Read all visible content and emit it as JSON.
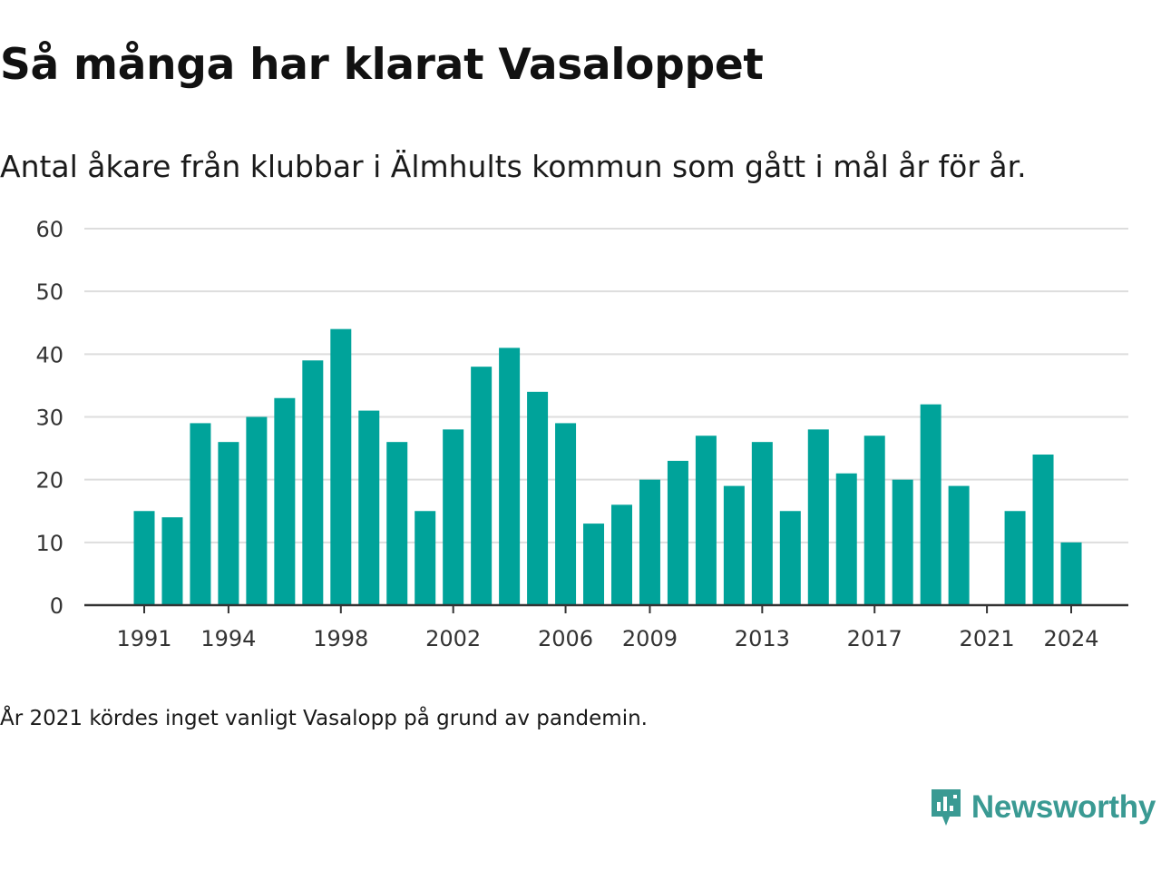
{
  "header": {
    "title": "Så många har klarat Vasaloppet",
    "subtitle": "Antal åkare från klubbar i Älmhults kommun som gått i mål år för år."
  },
  "footer": {
    "note": "År 2021 kördes inget vanligt Vasalopp på grund av pandemin.",
    "brand": "Newsworthy",
    "brand_icon": "newsworthy-logo-icon"
  },
  "colors": {
    "bar": "#00a39a",
    "grid": "#dddddd",
    "axis": "#333333",
    "brand": "#3a9a93"
  },
  "chart_data": {
    "type": "bar",
    "title": "",
    "xlabel": "",
    "ylabel": "",
    "ylim": [
      0,
      60
    ],
    "yticks": [
      0,
      10,
      20,
      30,
      40,
      50,
      60
    ],
    "xticks": [
      "1991",
      "1994",
      "1998",
      "2002",
      "2006",
      "2009",
      "2013",
      "2017",
      "2021",
      "2024"
    ],
    "grid": true,
    "legend": "none",
    "categories": [
      "1991",
      "1992",
      "1993",
      "1994",
      "1995",
      "1996",
      "1997",
      "1998",
      "1999",
      "2000",
      "2001",
      "2002",
      "2003",
      "2004",
      "2005",
      "2006",
      "2007",
      "2008",
      "2009",
      "2010",
      "2011",
      "2012",
      "2013",
      "2014",
      "2015",
      "2016",
      "2017",
      "2018",
      "2019",
      "2020",
      "2021",
      "2022",
      "2023",
      "2024"
    ],
    "values": [
      15,
      14,
      29,
      26,
      30,
      33,
      39,
      44,
      31,
      26,
      15,
      28,
      38,
      41,
      34,
      29,
      13,
      16,
      20,
      23,
      27,
      19,
      26,
      15,
      28,
      21,
      27,
      20,
      32,
      19,
      null,
      15,
      24,
      10
    ]
  }
}
